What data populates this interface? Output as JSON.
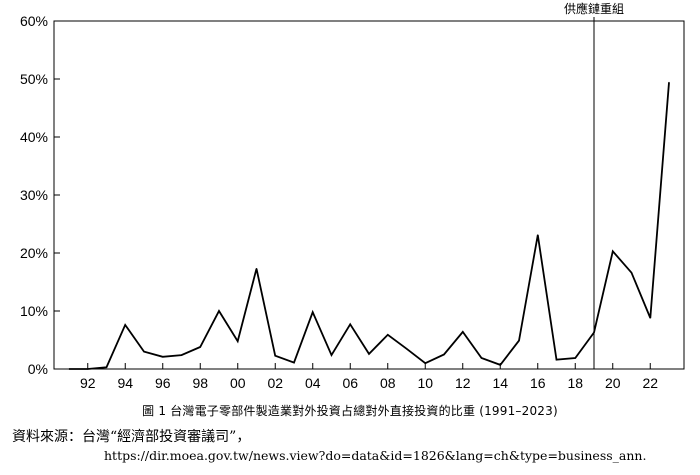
{
  "chart_data": {
    "type": "line",
    "x": [
      1991,
      1992,
      1993,
      1994,
      1995,
      1996,
      1997,
      1998,
      1999,
      2000,
      2001,
      2002,
      2003,
      2004,
      2005,
      2006,
      2007,
      2008,
      2009,
      2010,
      2011,
      2012,
      2013,
      2014,
      2015,
      2016,
      2017,
      2018,
      2019,
      2020,
      2021,
      2022,
      2023
    ],
    "series": [
      {
        "values": [
          0.0,
          0.0,
          0.3,
          7.6,
          3.0,
          2.1,
          2.4,
          3.8,
          10.0,
          4.8,
          17.3,
          2.3,
          1.1,
          9.8,
          2.4,
          7.7,
          2.6,
          5.9,
          3.5,
          1.0,
          2.5,
          6.4,
          1.9,
          0.7,
          4.9,
          23.1,
          1.6,
          1.9,
          6.3,
          20.3,
          16.6,
          8.8,
          49.4
        ]
      }
    ],
    "x_ticks": [
      "92",
      "94",
      "96",
      "98",
      "00",
      "02",
      "04",
      "06",
      "08",
      "10",
      "12",
      "14",
      "16",
      "18",
      "20",
      "22"
    ],
    "y_ticks": [
      "0%",
      "10%",
      "20%",
      "30%",
      "40%",
      "50%",
      "60%"
    ],
    "ylim": [
      0,
      60
    ],
    "grid": false,
    "annotation": {
      "label": "供應鏈重組",
      "x": 2019
    },
    "color": "#000000"
  },
  "caption": "圖 1 台灣電子零部件製造業對外投資占總對外直接投資的比重 (1991–2023)",
  "source": {
    "line1": "資料來源：台灣“經濟部投資審議司”，",
    "url": "https://dir.moea.gov.tw/news.view?do=data&id=1826&lang=ch&type=business_ann."
  }
}
